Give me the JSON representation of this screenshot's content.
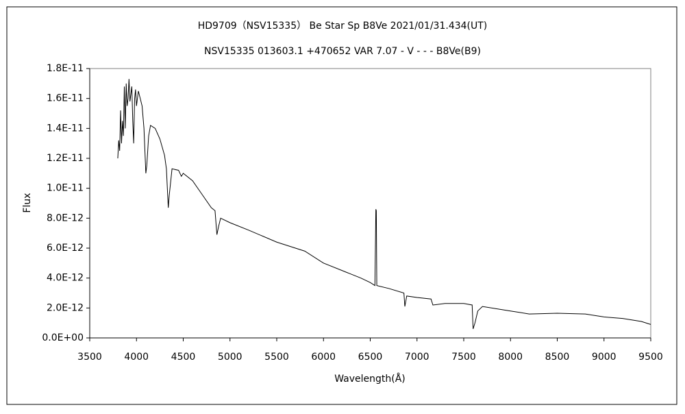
{
  "chart_data": {
    "type": "line",
    "title": "HD9709（NSV15335）  Be Star   Sp B8Ve    2021/01/31.434(UT)",
    "subtitle": "NSV15335 013603.1 +470652 VAR 7.07 - V - - - B8Ve(B9)",
    "x_label": "Wavelength(Å)",
    "y_label": "Flux",
    "x": [
      3800,
      3810,
      3820,
      3830,
      3840,
      3850,
      3860,
      3870,
      3880,
      3890,
      3900,
      3910,
      3920,
      3930,
      3950,
      3960,
      3970,
      3980,
      3990,
      4000,
      4020,
      4040,
      4060,
      4080,
      4100,
      4110,
      4130,
      4150,
      4200,
      4250,
      4300,
      4320,
      4340,
      4350,
      4380,
      4450,
      4480,
      4500,
      4600,
      4700,
      4800,
      4840,
      4860,
      4880,
      4900,
      5000,
      5200,
      5500,
      5800,
      6000,
      6200,
      6400,
      6500,
      6550,
      6560,
      6565,
      6570,
      6700,
      6860,
      6870,
      6890,
      7000,
      7150,
      7170,
      7300,
      7500,
      7590,
      7600,
      7620,
      7650,
      7700,
      8000,
      8200,
      8500,
      8800,
      9000,
      9200,
      9400,
      9500
    ],
    "series": [
      {
        "name": "Flux",
        "color": "#000000",
        "values": [
          1.2e-11,
          1.32e-11,
          1.25e-11,
          1.52e-11,
          1.3e-11,
          1.45e-11,
          1.35e-11,
          1.68e-11,
          1.4e-11,
          1.7e-11,
          1.55e-11,
          1.6e-11,
          1.73e-11,
          1.58e-11,
          1.68e-11,
          1.45e-11,
          1.3e-11,
          1.6e-11,
          1.66e-11,
          1.55e-11,
          1.65e-11,
          1.6e-11,
          1.55e-11,
          1.4e-11,
          1.1e-11,
          1.15e-11,
          1.35e-11,
          1.42e-11,
          1.4e-11,
          1.33e-11,
          1.22e-11,
          1.13e-11,
          8.7e-12,
          9.5e-12,
          1.13e-11,
          1.12e-11,
          1.08e-11,
          1.1e-11,
          1.05e-11,
          9.6e-12,
          8.7e-12,
          8.5e-12,
          6.9e-12,
          7.5e-12,
          8e-12,
          7.7e-12,
          7.2e-12,
          6.4e-12,
          5.8e-12,
          5e-12,
          4.5e-12,
          4e-12,
          3.7e-12,
          3.5e-12,
          8.6e-12,
          8.5e-12,
          3.5e-12,
          3.3e-12,
          3e-12,
          2.1e-12,
          2.8e-12,
          2.7e-12,
          2.6e-12,
          2.2e-12,
          2.3e-12,
          2.3e-12,
          2.2e-12,
          6e-13,
          1e-12,
          1.8e-12,
          2.1e-12,
          1.8e-12,
          1.6e-12,
          1.65e-12,
          1.6e-12,
          1.4e-12,
          1.3e-12,
          1.1e-12,
          9e-13
        ]
      }
    ],
    "xlim": [
      3500,
      9500
    ],
    "xticks": [
      3500,
      4000,
      4500,
      5000,
      5500,
      6000,
      6500,
      7000,
      7500,
      8000,
      8500,
      9000,
      9500
    ],
    "ylim": [
      0,
      1.8e-11
    ],
    "yticks": [
      {
        "value": 0,
        "label": "0.0E+00"
      },
      {
        "value": 2e-12,
        "label": "2.0E-12"
      },
      {
        "value": 4e-12,
        "label": "4.0E-12"
      },
      {
        "value": 6e-12,
        "label": "6.0E-12"
      },
      {
        "value": 8e-12,
        "label": "8.0E-12"
      },
      {
        "value": 1e-11,
        "label": "1.0E-11"
      },
      {
        "value": 1.2e-11,
        "label": "1.2E-11"
      },
      {
        "value": 1.4e-11,
        "label": "1.4E-11"
      },
      {
        "value": 1.6e-11,
        "label": "1.6E-11"
      },
      {
        "value": 1.8e-11,
        "label": "1.8E-11"
      }
    ],
    "grid": false
  }
}
